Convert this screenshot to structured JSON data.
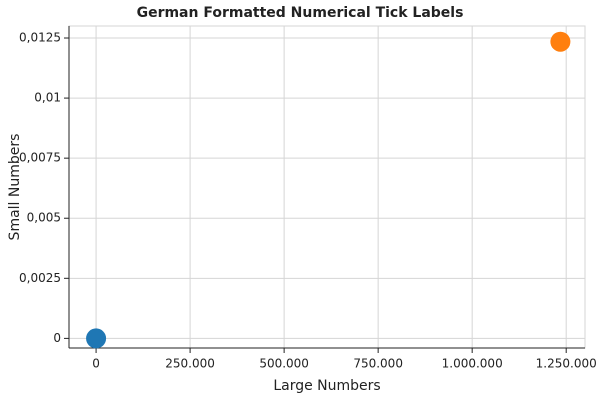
{
  "chart_data": {
    "type": "scatter",
    "title": "German Formatted Numerical Tick Labels",
    "x_label": "Large Numbers",
    "y_label": "Small Numbers",
    "x": [
      0,
      1234567
    ],
    "values": [
      0,
      0.012345
    ],
    "colors": [
      "#1f77b4",
      "#ff7f0e"
    ],
    "xlim": [
      -72000,
      1300000
    ],
    "ylim": [
      -0.0004,
      0.013
    ],
    "xticks": [
      0,
      {
        "value": 250000,
        "label": "250.000"
      },
      {
        "value": 500000,
        "label": "500.000"
      },
      {
        "value": 750000,
        "label": "750.000"
      },
      {
        "value": 1000000,
        "label": "1.000.000"
      },
      {
        "value": 1250000,
        "label": "1.250.000"
      }
    ],
    "yticks": [
      0,
      {
        "value": 0.0025,
        "label": "0,0025"
      },
      {
        "value": 0.005,
        "label": "0,005"
      },
      {
        "value": 0.0075,
        "label": "0,0075"
      },
      {
        "value": 0.01,
        "label": "0,01"
      },
      {
        "value": 0.0125,
        "label": "0,0125"
      }
    ],
    "grid": true
  }
}
